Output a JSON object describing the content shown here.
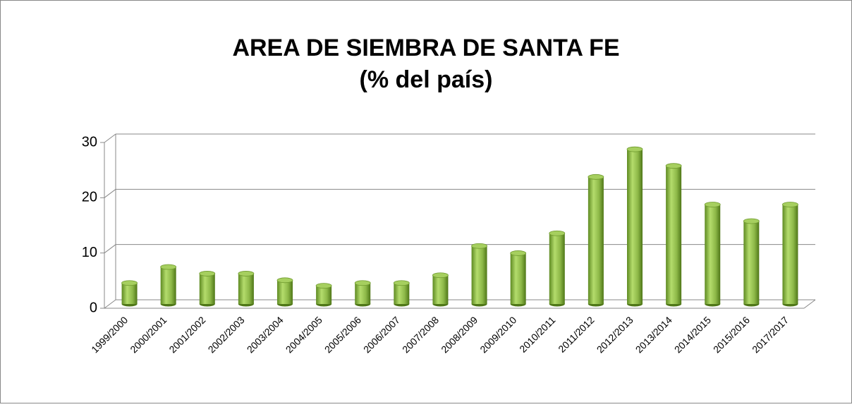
{
  "chart_data": {
    "type": "bar",
    "title": "AREA DE SIEMBRA DE SANTA FE",
    "subtitle": "(% del país)",
    "categories": [
      "1999/2000",
      "2000/2001",
      "2001/2002",
      "2002/2003",
      "2003/2004",
      "2004/2005",
      "2005/2006",
      "2006/2007",
      "2007/2008",
      "2008/2009",
      "2009/2010",
      "2010/2011",
      "2011/2012",
      "2012/2013",
      "2013/2014",
      "2014/2015",
      "2015/2016",
      "2017/2017"
    ],
    "values": [
      3.8,
      6.7,
      5.5,
      5.5,
      4.3,
      3.3,
      3.8,
      3.8,
      5.2,
      10.5,
      9.2,
      12.8,
      23,
      28,
      25,
      18,
      15,
      18
    ],
    "color": "#8db848",
    "ylim": [
      0,
      30
    ],
    "yticks": [
      0,
      10,
      20,
      30
    ],
    "grid": true
  }
}
